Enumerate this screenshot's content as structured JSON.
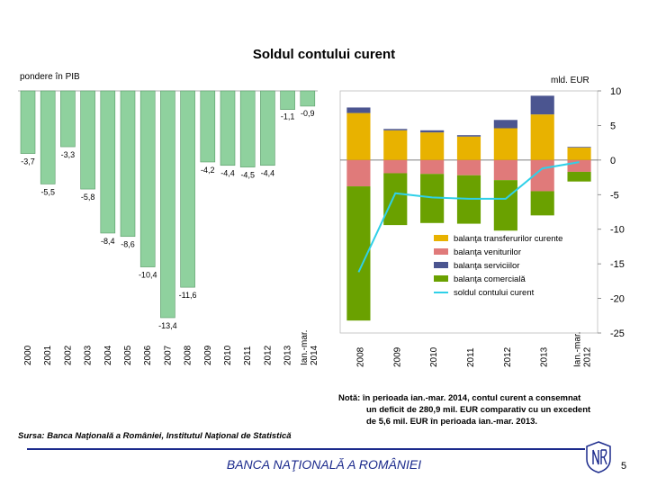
{
  "slide": {
    "title": "Soldul contului curent",
    "note_line1": "Notă: în perioada ian.-mar. 2014, contul curent a consemnat",
    "note_line2": "un deficit de 280,9 mil. EUR comparativ cu un excedent",
    "note_line3": "de 5,6 mil. EUR în perioada ian.-mar. 2013.",
    "source": "Sursa: Banca Naţională a României, Institutul Naţional de Statistică",
    "footer": "BANCA NAŢIONALĂ A ROMÂNIEI",
    "page_number": "5",
    "accent_color": "#1b2a8c",
    "logo_icon": "bnr-logo-icon"
  },
  "chart_data": [
    {
      "type": "bar",
      "ylabel": "pondere în PIB",
      "categories": [
        "2000",
        "2001",
        "2002",
        "2003",
        "2004",
        "2005",
        "2006",
        "2007",
        "2008",
        "2009",
        "2010",
        "2011",
        "2012",
        "2013",
        "Ian.-mar. 2014"
      ],
      "values": [
        -3.7,
        -5.5,
        -3.3,
        -5.8,
        -8.4,
        -8.6,
        -10.4,
        -13.4,
        -11.6,
        -4.2,
        -4.4,
        -4.5,
        -4.4,
        -1.1,
        -0.9
      ],
      "labels": [
        "-3,7",
        "-5,5",
        "-3,3",
        "-5,8",
        "-8,4",
        "-8,6",
        "-10,4",
        "-13,4",
        "-11,6",
        "-4,2",
        "-4,4",
        "-4,5",
        "-4,4",
        "-1,1",
        "-0,9"
      ],
      "ylim": [
        -14,
        0
      ],
      "color": "#8fd19e"
    },
    {
      "type": "bar",
      "stacked": true,
      "ylabel": "mld. EUR",
      "categories": [
        "2008",
        "2009",
        "2010",
        "2011",
        "2012",
        "2013",
        "Ian.-mar. 2012"
      ],
      "yticks": [
        10,
        5,
        0,
        -5,
        -10,
        -15,
        -20,
        -25
      ],
      "ylim": [
        -25,
        10
      ],
      "series": [
        {
          "name": "balanţa transferurilor curente",
          "color": "#e8b200",
          "values": [
            6.8,
            4.3,
            4.0,
            3.4,
            4.6,
            6.6,
            1.8
          ]
        },
        {
          "name": "balanţa veniturilor",
          "color": "#e07a7a",
          "values": [
            -3.8,
            -1.9,
            -2.0,
            -2.2,
            -2.9,
            -4.5,
            -1.7
          ]
        },
        {
          "name": "balanţa serviciilor",
          "color": "#4b5590",
          "values": [
            0.8,
            0.2,
            0.3,
            0.2,
            1.2,
            2.7,
            0.1
          ]
        },
        {
          "name": "balanţa comercială",
          "color": "#6aa100",
          "values": [
            -19.4,
            -7.5,
            -7.1,
            -7.0,
            -7.3,
            -3.5,
            -1.4
          ]
        }
      ],
      "line": {
        "name": "soldul contului curent",
        "color": "#2fd0e8",
        "values": [
          -16.2,
          -4.8,
          -5.4,
          -5.6,
          -5.6,
          -1.2,
          -0.3
        ]
      }
    }
  ]
}
